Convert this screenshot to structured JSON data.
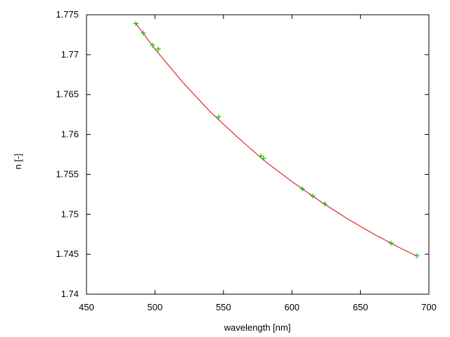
{
  "chart_data": {
    "type": "scatter",
    "title": "",
    "xlabel": "wavelength [nm]",
    "ylabel": "n [-]",
    "xlim": [
      450,
      700
    ],
    "ylim": [
      1.74,
      1.775
    ],
    "xticks": [
      "450",
      "500",
      "550",
      "600",
      "650",
      "700"
    ],
    "yticks": [
      "1.74",
      "1.745",
      "1.75",
      "1.755",
      "1.76",
      "1.765",
      "1.77",
      "1.775"
    ],
    "grid": false,
    "legend": "none",
    "series": [
      {
        "kind": "points",
        "marker": "plus",
        "color": "#00c000",
        "x": [
          486.1,
          491.6,
          498.3,
          502.4,
          546.5,
          577.3,
          579.4,
          607.6,
          615.3,
          624.0,
          672.3,
          691.3
        ],
        "y": [
          1.7739,
          1.7727,
          1.7712,
          1.7707,
          1.7622,
          1.7573,
          1.757,
          1.7532,
          1.7523,
          1.7513,
          1.7464,
          1.7448
        ]
      },
      {
        "kind": "line",
        "color": "#e00000",
        "x": [
          486,
          500,
          520,
          540,
          560,
          580,
          600,
          620,
          640,
          660,
          680,
          691
        ],
        "y": [
          1.7739,
          1.7707,
          1.7666,
          1.7629,
          1.7597,
          1.7567,
          1.7541,
          1.7517,
          1.7495,
          1.7475,
          1.7457,
          1.7448
        ]
      }
    ]
  }
}
